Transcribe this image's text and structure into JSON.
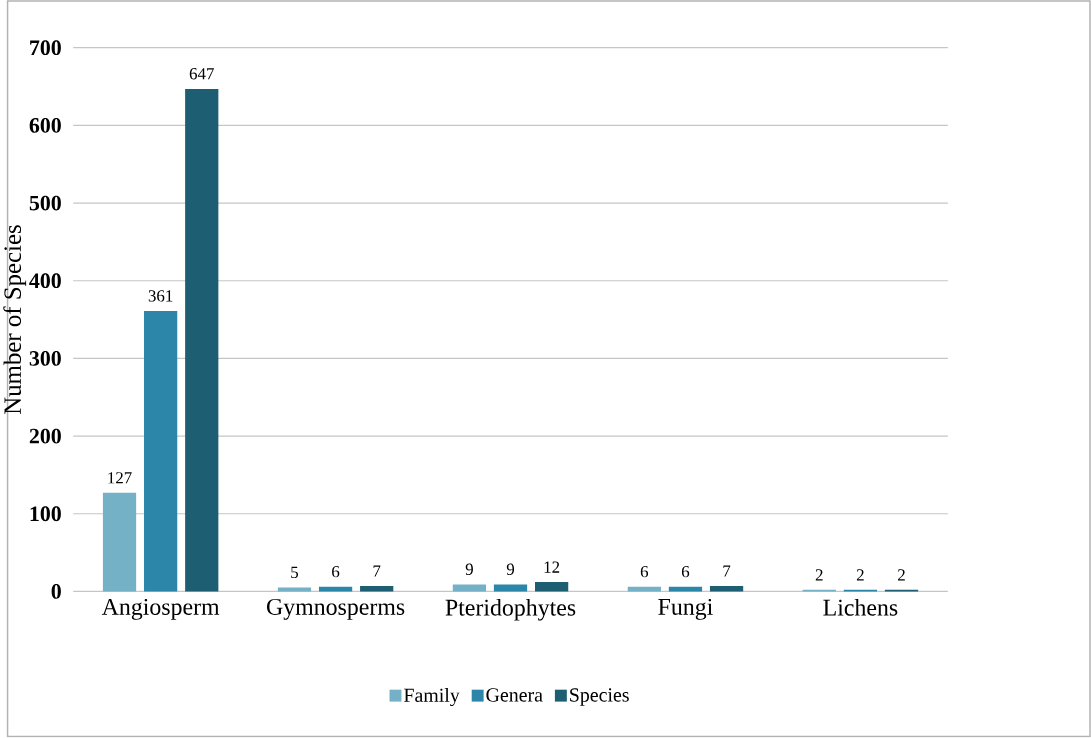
{
  "chart_data": {
    "type": "bar",
    "ylabel": "Number of Species",
    "categories": [
      "Angiosperm",
      "Gymnosperms",
      "Pteridophytes",
      "Fungi",
      "Lichens"
    ],
    "series": [
      {
        "name": "Family",
        "color": "#74b1c7",
        "values": [
          127,
          5,
          9,
          6,
          2
        ]
      },
      {
        "name": "Genera",
        "color": "#2b86a9",
        "values": [
          361,
          6,
          9,
          6,
          2
        ]
      },
      {
        "name": "Species",
        "color": "#1d5e73",
        "values": [
          647,
          7,
          12,
          7,
          2
        ]
      }
    ],
    "ylim": [
      0,
      700
    ],
    "yticks": [
      0,
      100,
      200,
      300,
      400,
      500,
      600,
      700
    ],
    "grid": "y",
    "legend": "bottom",
    "data_labels": true
  }
}
